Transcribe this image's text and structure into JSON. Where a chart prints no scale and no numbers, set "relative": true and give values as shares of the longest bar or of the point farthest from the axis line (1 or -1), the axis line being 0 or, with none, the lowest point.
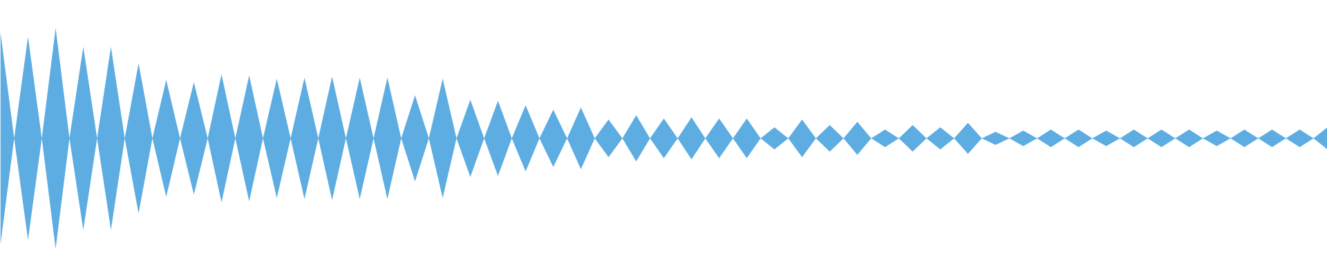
{
  "chart_data": {
    "type": "area",
    "relative": true,
    "ref_lines": [
      {
        "axis": "y",
        "value": 0,
        "color": "#5dade2"
      }
    ],
    "categories": [
      null,
      null,
      null,
      null,
      null,
      null,
      null,
      null,
      null,
      null,
      null,
      null,
      null,
      null,
      null,
      null,
      null,
      null,
      null,
      null,
      null,
      null,
      null,
      null,
      null,
      null,
      null,
      null,
      null,
      null,
      null,
      null,
      null,
      null,
      null,
      null,
      null,
      null,
      null,
      null,
      null,
      null,
      null,
      null,
      null,
      null,
      null,
      null,
      null,
      null,
      null,
      null,
      null,
      null,
      null,
      null,
      null,
      null,
      null,
      null,
      null,
      null,
      null,
      null,
      null,
      null,
      null,
      null,
      null,
      null,
      null,
      null,
      null,
      null,
      null,
      null,
      null,
      null,
      null,
      null,
      null,
      null,
      null,
      null,
      null,
      null,
      null,
      null,
      null,
      null,
      null,
      null,
      null,
      null,
      null,
      null,
      null
    ],
    "series": [
      {
        "color": "#5dade2",
        "values": [
          0.97,
          0,
          0.92,
          0,
          1.0,
          0,
          0.83,
          0,
          0.83,
          0,
          0.68,
          0,
          0.53,
          0,
          0.51,
          0,
          0.58,
          0,
          0.57,
          0,
          0.54,
          0,
          0.55,
          0,
          0.56,
          0,
          0.55,
          0,
          0.55,
          0,
          0.39,
          0,
          0.54,
          0,
          0.35,
          0,
          0.34,
          0,
          0.3,
          0,
          0.26,
          0,
          0.28,
          0,
          0.17,
          0,
          0.21,
          0,
          0.18,
          0,
          0.19,
          0,
          0.18,
          0,
          0.18,
          0,
          0.1,
          0,
          0.17,
          0,
          0.12,
          0,
          0.15,
          0,
          0.08,
          0,
          0.12,
          0,
          0.1,
          0,
          0.14,
          0,
          0.06,
          0,
          0.07,
          0,
          0.08,
          0,
          0.08,
          0,
          0.07,
          0,
          0.08,
          0,
          0.08,
          0,
          0.08,
          0,
          0.07,
          0,
          0.08,
          0,
          0.08,
          0,
          0.08,
          0,
          0.1
        ]
      },
      {
        "color": "#5dade2",
        "values": [
          -0.97,
          0,
          -0.92,
          0,
          -1.0,
          0,
          -0.83,
          0,
          -0.83,
          0,
          -0.68,
          0,
          -0.53,
          0,
          -0.51,
          0,
          -0.58,
          0,
          -0.57,
          0,
          -0.54,
          0,
          -0.55,
          0,
          -0.56,
          0,
          -0.55,
          0,
          -0.55,
          0,
          -0.39,
          0,
          -0.54,
          0,
          -0.35,
          0,
          -0.34,
          0,
          -0.3,
          0,
          -0.26,
          0,
          -0.28,
          0,
          -0.17,
          0,
          -0.21,
          0,
          -0.18,
          0,
          -0.19,
          0,
          -0.18,
          0,
          -0.18,
          0,
          -0.1,
          0,
          -0.17,
          0,
          -0.12,
          0,
          -0.15,
          0,
          -0.08,
          0,
          -0.12,
          0,
          -0.1,
          0,
          -0.14,
          0,
          -0.06,
          0,
          -0.07,
          0,
          -0.08,
          0,
          -0.08,
          0,
          -0.07,
          0,
          -0.08,
          0,
          -0.08,
          0,
          -0.08,
          0,
          -0.07,
          0,
          -0.08,
          0,
          -0.08,
          0,
          -0.08,
          0,
          -0.1
        ]
      }
    ]
  }
}
